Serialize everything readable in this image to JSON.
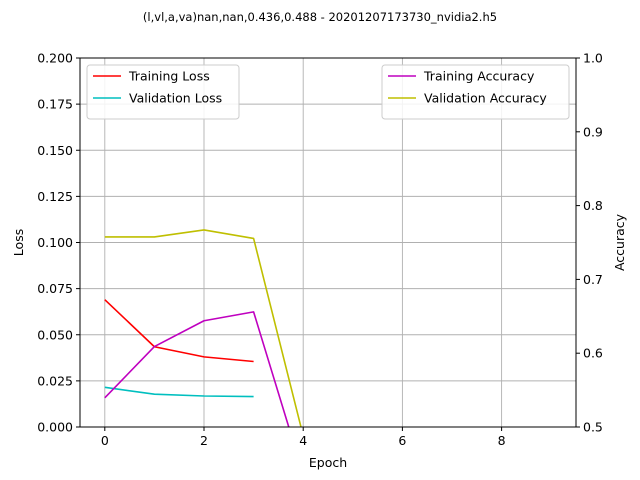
{
  "chart_data": {
    "type": "line",
    "title": "(l,vl,a,va)nan,nan,0.436,0.488 - 20201207173730_nvidia2.h5",
    "xlabel": "Epoch",
    "ylabel_left": "Loss",
    "ylabel_right": "Accuracy",
    "xlim": [
      -0.5,
      9.5
    ],
    "ylim_left": [
      0,
      0.2
    ],
    "ylim_right": [
      0.5,
      1.0
    ],
    "x_ticks": [
      0,
      2,
      4,
      6,
      8
    ],
    "x_tick_labels": [
      "0",
      "2",
      "4",
      "6",
      "8"
    ],
    "y_left_ticks": [
      0,
      0.025,
      0.05,
      0.075,
      0.1,
      0.125,
      0.15,
      0.175,
      0.2
    ],
    "y_left_tick_labels": [
      "0.000",
      "0.025",
      "0.050",
      "0.075",
      "0.100",
      "0.125",
      "0.150",
      "0.175",
      "0.200"
    ],
    "y_right_ticks": [
      0.5,
      0.6,
      0.7,
      0.8,
      0.9,
      1.0
    ],
    "y_right_tick_labels": [
      "0.5",
      "0.6",
      "0.7",
      "0.8",
      "0.9",
      "1.0"
    ],
    "grid": true,
    "legend_left_placement": "upper-left",
    "legend_right_placement": "upper-right",
    "series_left": [
      {
        "name": "Training Loss",
        "color": "#ff0000",
        "x": [
          0,
          1,
          2,
          3
        ],
        "values": [
          0.069,
          0.0435,
          0.038,
          0.0355
        ]
      },
      {
        "name": "Validation Loss",
        "color": "#00bfbf",
        "x": [
          0,
          1,
          2,
          3
        ],
        "values": [
          0.0215,
          0.0178,
          0.0168,
          0.0165
        ]
      }
    ],
    "series_right": [
      {
        "name": "Training Accuracy",
        "color": "#bf00bf",
        "x": [
          0,
          1,
          2,
          3,
          4,
          5,
          6,
          7,
          8,
          9
        ],
        "values": [
          0.5395,
          0.609,
          0.644,
          0.656,
          0.436,
          0.436,
          0.436,
          0.436,
          0.436,
          0.436
        ]
      },
      {
        "name": "Validation Accuracy",
        "color": "#bfbf00",
        "x": [
          0,
          1,
          2,
          3,
          4,
          5,
          6,
          7,
          8,
          9
        ],
        "values": [
          0.7575,
          0.7575,
          0.767,
          0.7555,
          0.488,
          0.488,
          0.488,
          0.488,
          0.488,
          0.488
        ]
      }
    ]
  }
}
